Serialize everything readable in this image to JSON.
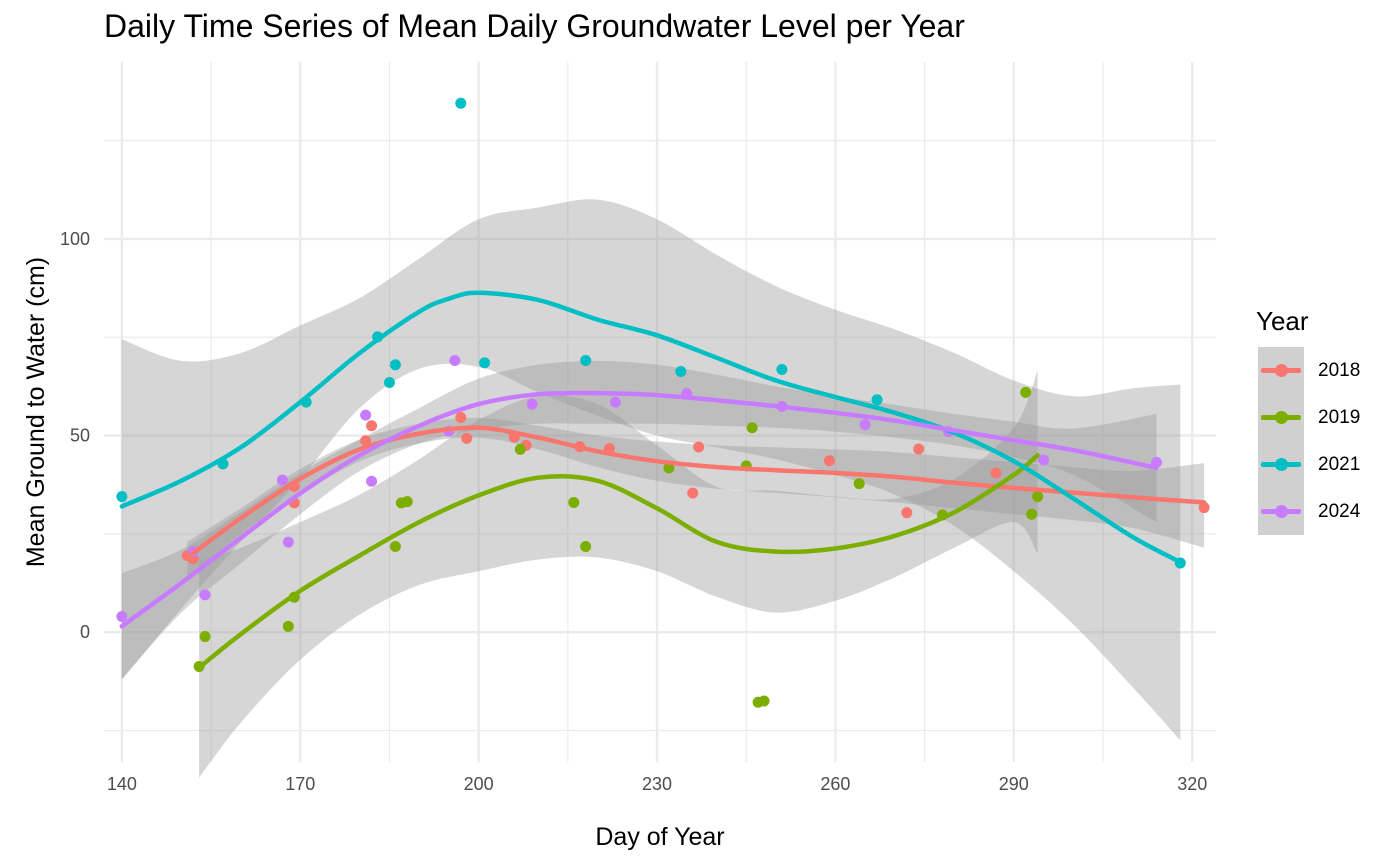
{
  "chart_data": {
    "type": "scatter",
    "title": "Daily Time Series of Mean Daily Groundwater Level per Year",
    "xlabel": "Day of Year",
    "ylabel": "Mean Ground to Water (cm)",
    "xlim": [
      137,
      324
    ],
    "ylim": [
      -33,
      145
    ],
    "x_ticks": [
      140,
      170,
      200,
      230,
      260,
      290,
      320
    ],
    "y_ticks": [
      0,
      50,
      100
    ],
    "grid": true,
    "legend": {
      "title": "Year",
      "position": "right"
    },
    "series": [
      {
        "name": "2018",
        "color": "#F8766D",
        "points": [
          [
            151,
            19.5
          ],
          [
            152,
            18.7
          ],
          [
            169,
            32.9
          ],
          [
            169,
            37.1
          ],
          [
            181,
            48.7
          ],
          [
            182,
            52.5
          ],
          [
            197,
            54.6
          ],
          [
            198,
            49.3
          ],
          [
            206,
            49.6
          ],
          [
            208,
            47.5
          ],
          [
            217,
            47.2
          ],
          [
            222,
            46.7
          ],
          [
            236,
            35.4
          ],
          [
            237,
            47.1
          ],
          [
            259,
            43.6
          ],
          [
            272,
            30.4
          ],
          [
            274,
            46.6
          ],
          [
            287,
            40.5
          ],
          [
            322,
            31.7
          ]
        ],
        "smooth": [
          [
            151,
            19
          ],
          [
            160,
            29
          ],
          [
            170,
            39
          ],
          [
            180,
            46.5
          ],
          [
            190,
            50.5
          ],
          [
            200,
            52
          ],
          [
            210,
            49.5
          ],
          [
            220,
            46
          ],
          [
            230,
            43.5
          ],
          [
            240,
            42
          ],
          [
            250,
            41.2
          ],
          [
            260,
            40.5
          ],
          [
            270,
            39.5
          ],
          [
            280,
            38
          ],
          [
            290,
            36.7
          ],
          [
            300,
            35.5
          ],
          [
            310,
            34.3
          ],
          [
            322,
            33
          ]
        ],
        "band_upper": [
          [
            151,
            23
          ],
          [
            160,
            31.5
          ],
          [
            170,
            41.5
          ],
          [
            180,
            49
          ],
          [
            190,
            53
          ],
          [
            200,
            54.5
          ],
          [
            210,
            52.5
          ],
          [
            220,
            50
          ],
          [
            230,
            48.5
          ],
          [
            240,
            47.5
          ],
          [
            250,
            47
          ],
          [
            260,
            46.5
          ],
          [
            270,
            45.8
          ],
          [
            280,
            44.5
          ],
          [
            290,
            43.3
          ],
          [
            300,
            42
          ],
          [
            310,
            41
          ],
          [
            322,
            43
          ]
        ],
        "band_lower": [
          [
            151,
            13
          ],
          [
            160,
            25
          ],
          [
            170,
            35
          ],
          [
            180,
            43.5
          ],
          [
            190,
            48
          ],
          [
            200,
            49.5
          ],
          [
            210,
            46.5
          ],
          [
            220,
            42
          ],
          [
            230,
            38.5
          ],
          [
            240,
            36.5
          ],
          [
            250,
            35.4
          ],
          [
            260,
            34.3
          ],
          [
            270,
            33
          ],
          [
            280,
            31.5
          ],
          [
            290,
            30
          ],
          [
            300,
            28.5
          ],
          [
            310,
            26.5
          ],
          [
            322,
            21.5
          ]
        ]
      },
      {
        "name": "2019",
        "color": "#7CAE00",
        "points": [
          [
            153,
            -8.7
          ],
          [
            154,
            -1.1
          ],
          [
            168,
            1.5
          ],
          [
            169,
            8.9
          ],
          [
            186,
            21.8
          ],
          [
            187,
            32.9
          ],
          [
            188,
            33.2
          ],
          [
            207,
            46.5
          ],
          [
            216,
            33
          ],
          [
            218,
            21.8
          ],
          [
            232,
            41.8
          ],
          [
            245,
            42.3
          ],
          [
            246,
            52
          ],
          [
            247,
            -17.8
          ],
          [
            248,
            -17.5
          ],
          [
            264,
            37.8
          ],
          [
            278,
            29.8
          ],
          [
            292,
            61
          ],
          [
            293,
            30
          ],
          [
            294,
            34.5
          ]
        ],
        "smooth": [
          [
            153,
            -9
          ],
          [
            160,
            -0.5
          ],
          [
            170,
            10.5
          ],
          [
            180,
            19.5
          ],
          [
            190,
            28
          ],
          [
            200,
            34.8
          ],
          [
            210,
            39.3
          ],
          [
            220,
            38.5
          ],
          [
            230,
            31.5
          ],
          [
            240,
            23
          ],
          [
            250,
            20.5
          ],
          [
            260,
            21.3
          ],
          [
            270,
            24.5
          ],
          [
            280,
            30.5
          ],
          [
            290,
            40
          ],
          [
            294,
            45
          ]
        ],
        "band_upper": [
          [
            153,
            18
          ],
          [
            160,
            21.5
          ],
          [
            170,
            28
          ],
          [
            180,
            35
          ],
          [
            190,
            44
          ],
          [
            200,
            54
          ],
          [
            210,
            60
          ],
          [
            220,
            58
          ],
          [
            230,
            47.5
          ],
          [
            240,
            37
          ],
          [
            250,
            36
          ],
          [
            260,
            34.5
          ],
          [
            270,
            34
          ],
          [
            280,
            39
          ],
          [
            290,
            52
          ],
          [
            294,
            66.5
          ]
        ],
        "band_lower": [
          [
            153,
            -37
          ],
          [
            160,
            -23
          ],
          [
            170,
            -7
          ],
          [
            180,
            4.5
          ],
          [
            190,
            12
          ],
          [
            200,
            15.5
          ],
          [
            210,
            18.5
          ],
          [
            220,
            19
          ],
          [
            230,
            15.5
          ],
          [
            240,
            9
          ],
          [
            250,
            5
          ],
          [
            260,
            8
          ],
          [
            270,
            14
          ],
          [
            280,
            21.5
          ],
          [
            290,
            28
          ],
          [
            294,
            20
          ]
        ]
      },
      {
        "name": "2021",
        "color": "#00BFC4",
        "points": [
          [
            140,
            34.5
          ],
          [
            157,
            42.8
          ],
          [
            171,
            58.5
          ],
          [
            183,
            75.1
          ],
          [
            185,
            63.5
          ],
          [
            186,
            68
          ],
          [
            197,
            134.5
          ],
          [
            201,
            68.5
          ],
          [
            218,
            69.1
          ],
          [
            234,
            66.3
          ],
          [
            251,
            66.8
          ],
          [
            267,
            59.1
          ],
          [
            318,
            17.6
          ]
        ],
        "smooth": [
          [
            140,
            32
          ],
          [
            150,
            38.5
          ],
          [
            160,
            47
          ],
          [
            170,
            58.5
          ],
          [
            180,
            71
          ],
          [
            190,
            81.5
          ],
          [
            195,
            84.8
          ],
          [
            200,
            86.3
          ],
          [
            210,
            84.5
          ],
          [
            220,
            79.5
          ],
          [
            230,
            75.5
          ],
          [
            240,
            69.8
          ],
          [
            250,
            64
          ],
          [
            260,
            59.8
          ],
          [
            270,
            55.8
          ],
          [
            280,
            50.7
          ],
          [
            290,
            43.5
          ],
          [
            300,
            34
          ],
          [
            310,
            24.2
          ],
          [
            318,
            17.8
          ]
        ],
        "band_upper": [
          [
            140,
            74.5
          ],
          [
            150,
            69
          ],
          [
            160,
            71
          ],
          [
            170,
            78
          ],
          [
            180,
            85
          ],
          [
            190,
            95
          ],
          [
            200,
            105
          ],
          [
            210,
            108
          ],
          [
            220,
            110
          ],
          [
            230,
            105
          ],
          [
            240,
            96
          ],
          [
            250,
            88
          ],
          [
            260,
            82
          ],
          [
            270,
            77
          ],
          [
            280,
            71
          ],
          [
            290,
            64
          ],
          [
            300,
            60
          ],
          [
            310,
            62
          ],
          [
            318,
            63
          ]
        ],
        "band_lower": [
          [
            140,
            -12
          ],
          [
            150,
            6
          ],
          [
            160,
            23
          ],
          [
            170,
            39
          ],
          [
            180,
            57
          ],
          [
            190,
            67
          ],
          [
            200,
            67.5
          ],
          [
            210,
            61
          ],
          [
            220,
            55
          ],
          [
            230,
            50
          ],
          [
            240,
            47
          ],
          [
            250,
            44
          ],
          [
            260,
            40
          ],
          [
            270,
            35
          ],
          [
            280,
            27
          ],
          [
            290,
            15.5
          ],
          [
            300,
            2
          ],
          [
            310,
            -14
          ],
          [
            318,
            -27.5
          ]
        ]
      },
      {
        "name": "2024",
        "color": "#C77CFF",
        "points": [
          [
            140,
            4
          ],
          [
            152,
            20.5
          ],
          [
            154,
            9.5
          ],
          [
            167,
            38.7
          ],
          [
            168,
            22.9
          ],
          [
            181,
            55.2
          ],
          [
            182,
            38.4
          ],
          [
            195,
            51.1
          ],
          [
            196,
            69.1
          ],
          [
            209,
            58
          ],
          [
            223,
            58.5
          ],
          [
            235,
            60.7
          ],
          [
            251,
            57.4
          ],
          [
            265,
            52.8
          ],
          [
            279,
            51
          ],
          [
            295,
            43.8
          ],
          [
            314,
            43.2
          ]
        ],
        "smooth": [
          [
            140,
            1.5
          ],
          [
            150,
            12.5
          ],
          [
            160,
            24
          ],
          [
            170,
            35.3
          ],
          [
            180,
            45
          ],
          [
            190,
            52.5
          ],
          [
            200,
            58
          ],
          [
            210,
            60.5
          ],
          [
            220,
            60.8
          ],
          [
            230,
            60.3
          ],
          [
            240,
            59
          ],
          [
            250,
            57.5
          ],
          [
            260,
            55.8
          ],
          [
            270,
            53.8
          ],
          [
            280,
            51.3
          ],
          [
            290,
            48.8
          ],
          [
            300,
            46.3
          ],
          [
            314,
            41.8
          ]
        ],
        "band_upper": [
          [
            140,
            15
          ],
          [
            150,
            21
          ],
          [
            160,
            30.5
          ],
          [
            170,
            40.5
          ],
          [
            180,
            49
          ],
          [
            190,
            57
          ],
          [
            200,
            64.5
          ],
          [
            210,
            68
          ],
          [
            220,
            69
          ],
          [
            230,
            68
          ],
          [
            240,
            65.5
          ],
          [
            250,
            62.5
          ],
          [
            260,
            60
          ],
          [
            270,
            57.8
          ],
          [
            280,
            55.5
          ],
          [
            290,
            53.5
          ],
          [
            300,
            51.8
          ],
          [
            314,
            55.5
          ]
        ],
        "band_lower": [
          [
            140,
            -12
          ],
          [
            150,
            5
          ],
          [
            160,
            17.5
          ],
          [
            170,
            30
          ],
          [
            180,
            41
          ],
          [
            190,
            48
          ],
          [
            200,
            51.5
          ],
          [
            210,
            53
          ],
          [
            220,
            53
          ],
          [
            230,
            53
          ],
          [
            240,
            52.5
          ],
          [
            250,
            52
          ],
          [
            260,
            51
          ],
          [
            270,
            49.5
          ],
          [
            280,
            47.5
          ],
          [
            290,
            44.5
          ],
          [
            300,
            40
          ],
          [
            314,
            28
          ]
        ]
      }
    ]
  }
}
